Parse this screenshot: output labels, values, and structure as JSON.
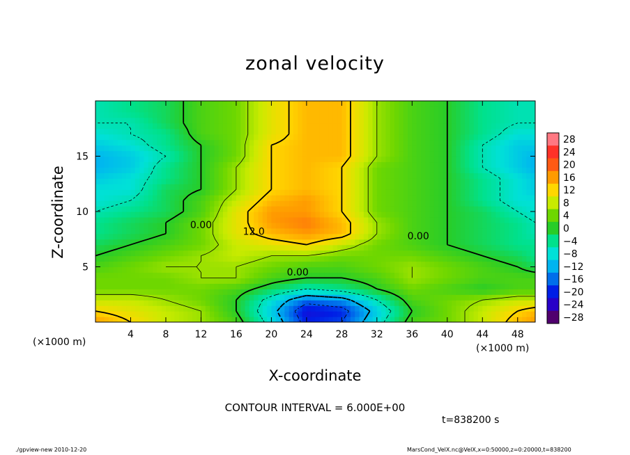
{
  "header": {
    "title": "zonal velocity",
    "contour_interval": "CONTOUR INTERVAL = 6.000E+00",
    "time_label": "t=838200 s"
  },
  "footer": {
    "left": "./gpview-new 2010-12-20",
    "right": "MarsCond_VelX.nc@VelX,x=0:50000,z=0:20000,t=838200"
  },
  "chart_data": {
    "type": "heatmap",
    "title": "zonal velocity",
    "xlabel": "X-coordinate",
    "ylabel": "Z-coordinate",
    "x_unit": "(×1000 m)",
    "xlim": [
      0,
      50
    ],
    "ylim": [
      0,
      20
    ],
    "x_ticks": [
      4,
      8,
      12,
      16,
      20,
      24,
      28,
      32,
      36,
      40,
      44,
      48
    ],
    "y_ticks": [
      5,
      10,
      15
    ],
    "contour_interval": 6.0,
    "contour_labels": [
      {
        "x": 12.0,
        "z": 8.5,
        "text": "0.00"
      },
      {
        "x": 18.0,
        "z": 7.9,
        "text": "12.0"
      },
      {
        "x": 23.0,
        "z": 4.2,
        "text": "0.00"
      },
      {
        "x": 36.7,
        "z": 7.5,
        "text": "0.00"
      }
    ],
    "colorbar": {
      "levels": [
        -28,
        -24,
        -20,
        -16,
        -12,
        -8,
        -4,
        0,
        4,
        8,
        12,
        16,
        20,
        24,
        28
      ],
      "labels": [
        "28",
        "24",
        "20",
        "16",
        "12",
        "8",
        "4",
        "0",
        "−4",
        "−8",
        "−12",
        "−16",
        "−20",
        "−24",
        "−28"
      ]
    },
    "grid_x": [
      0,
      4,
      8,
      12,
      16,
      20,
      24,
      28,
      32,
      36,
      40,
      44,
      48,
      50
    ],
    "grid_z": [
      0,
      1,
      2,
      3,
      4,
      5,
      6,
      7,
      8,
      9,
      10,
      11,
      12,
      13,
      14,
      15,
      16,
      17,
      18,
      19,
      20
    ],
    "values": [
      [
        16,
        12,
        8,
        6,
        2,
        -8,
        -20,
        -18,
        -8,
        2,
        4,
        8,
        14,
        16
      ],
      [
        12,
        10,
        8,
        6,
        0,
        -10,
        -22,
        -20,
        -10,
        0,
        4,
        8,
        12,
        14
      ],
      [
        8,
        8,
        6,
        4,
        0,
        -8,
        -16,
        -14,
        -6,
        2,
        4,
        6,
        8,
        8
      ],
      [
        4,
        4,
        4,
        4,
        2,
        -2,
        -6,
        -4,
        0,
        4,
        2,
        0,
        2,
        2
      ],
      [
        4,
        4,
        4,
        6,
        6,
        2,
        0,
        0,
        2,
        6,
        4,
        2,
        2,
        2
      ],
      [
        2,
        4,
        6,
        6,
        6,
        4,
        2,
        2,
        4,
        6,
        4,
        2,
        0,
        -2
      ],
      [
        0,
        2,
        4,
        6,
        8,
        6,
        6,
        4,
        4,
        4,
        2,
        0,
        -2,
        -4
      ],
      [
        -2,
        0,
        2,
        4,
        8,
        10,
        12,
        8,
        4,
        2,
        0,
        -2,
        -4,
        -4
      ],
      [
        -4,
        -2,
        0,
        4,
        10,
        14,
        16,
        14,
        6,
        2,
        0,
        -2,
        -4,
        -6
      ],
      [
        -4,
        -2,
        0,
        4,
        10,
        16,
        18,
        14,
        6,
        2,
        0,
        -2,
        -4,
        -6
      ],
      [
        -6,
        -4,
        -2,
        2,
        10,
        16,
        16,
        12,
        4,
        2,
        0,
        -2,
        -6,
        -8
      ],
      [
        -8,
        -6,
        -2,
        2,
        8,
        14,
        16,
        12,
        4,
        2,
        0,
        -4,
        -8,
        -8
      ],
      [
        -8,
        -8,
        -2,
        0,
        6,
        12,
        14,
        12,
        4,
        2,
        0,
        -4,
        -8,
        -10
      ],
      [
        -10,
        -8,
        -4,
        0,
        6,
        12,
        14,
        12,
        4,
        2,
        0,
        -4,
        -8,
        -10
      ],
      [
        -12,
        -10,
        -4,
        0,
        6,
        12,
        14,
        12,
        4,
        2,
        0,
        -6,
        -10,
        -12
      ],
      [
        -12,
        -10,
        -6,
        0,
        4,
        12,
        14,
        14,
        6,
        2,
        0,
        -6,
        -10,
        -12
      ],
      [
        -10,
        -8,
        -4,
        0,
        4,
        12,
        14,
        14,
        6,
        2,
        0,
        -6,
        -10,
        -10
      ],
      [
        -8,
        -6,
        -4,
        2,
        4,
        10,
        14,
        14,
        6,
        2,
        0,
        -4,
        -8,
        -8
      ],
      [
        -6,
        -6,
        -2,
        2,
        4,
        10,
        14,
        14,
        6,
        2,
        0,
        -4,
        -6,
        -6
      ],
      [
        -6,
        -4,
        -2,
        2,
        4,
        10,
        14,
        14,
        6,
        2,
        0,
        -4,
        -6,
        -6
      ],
      [
        -6,
        -4,
        -2,
        2,
        4,
        10,
        14,
        14,
        6,
        2,
        0,
        -4,
        -6,
        -6
      ]
    ],
    "legend": "right"
  }
}
